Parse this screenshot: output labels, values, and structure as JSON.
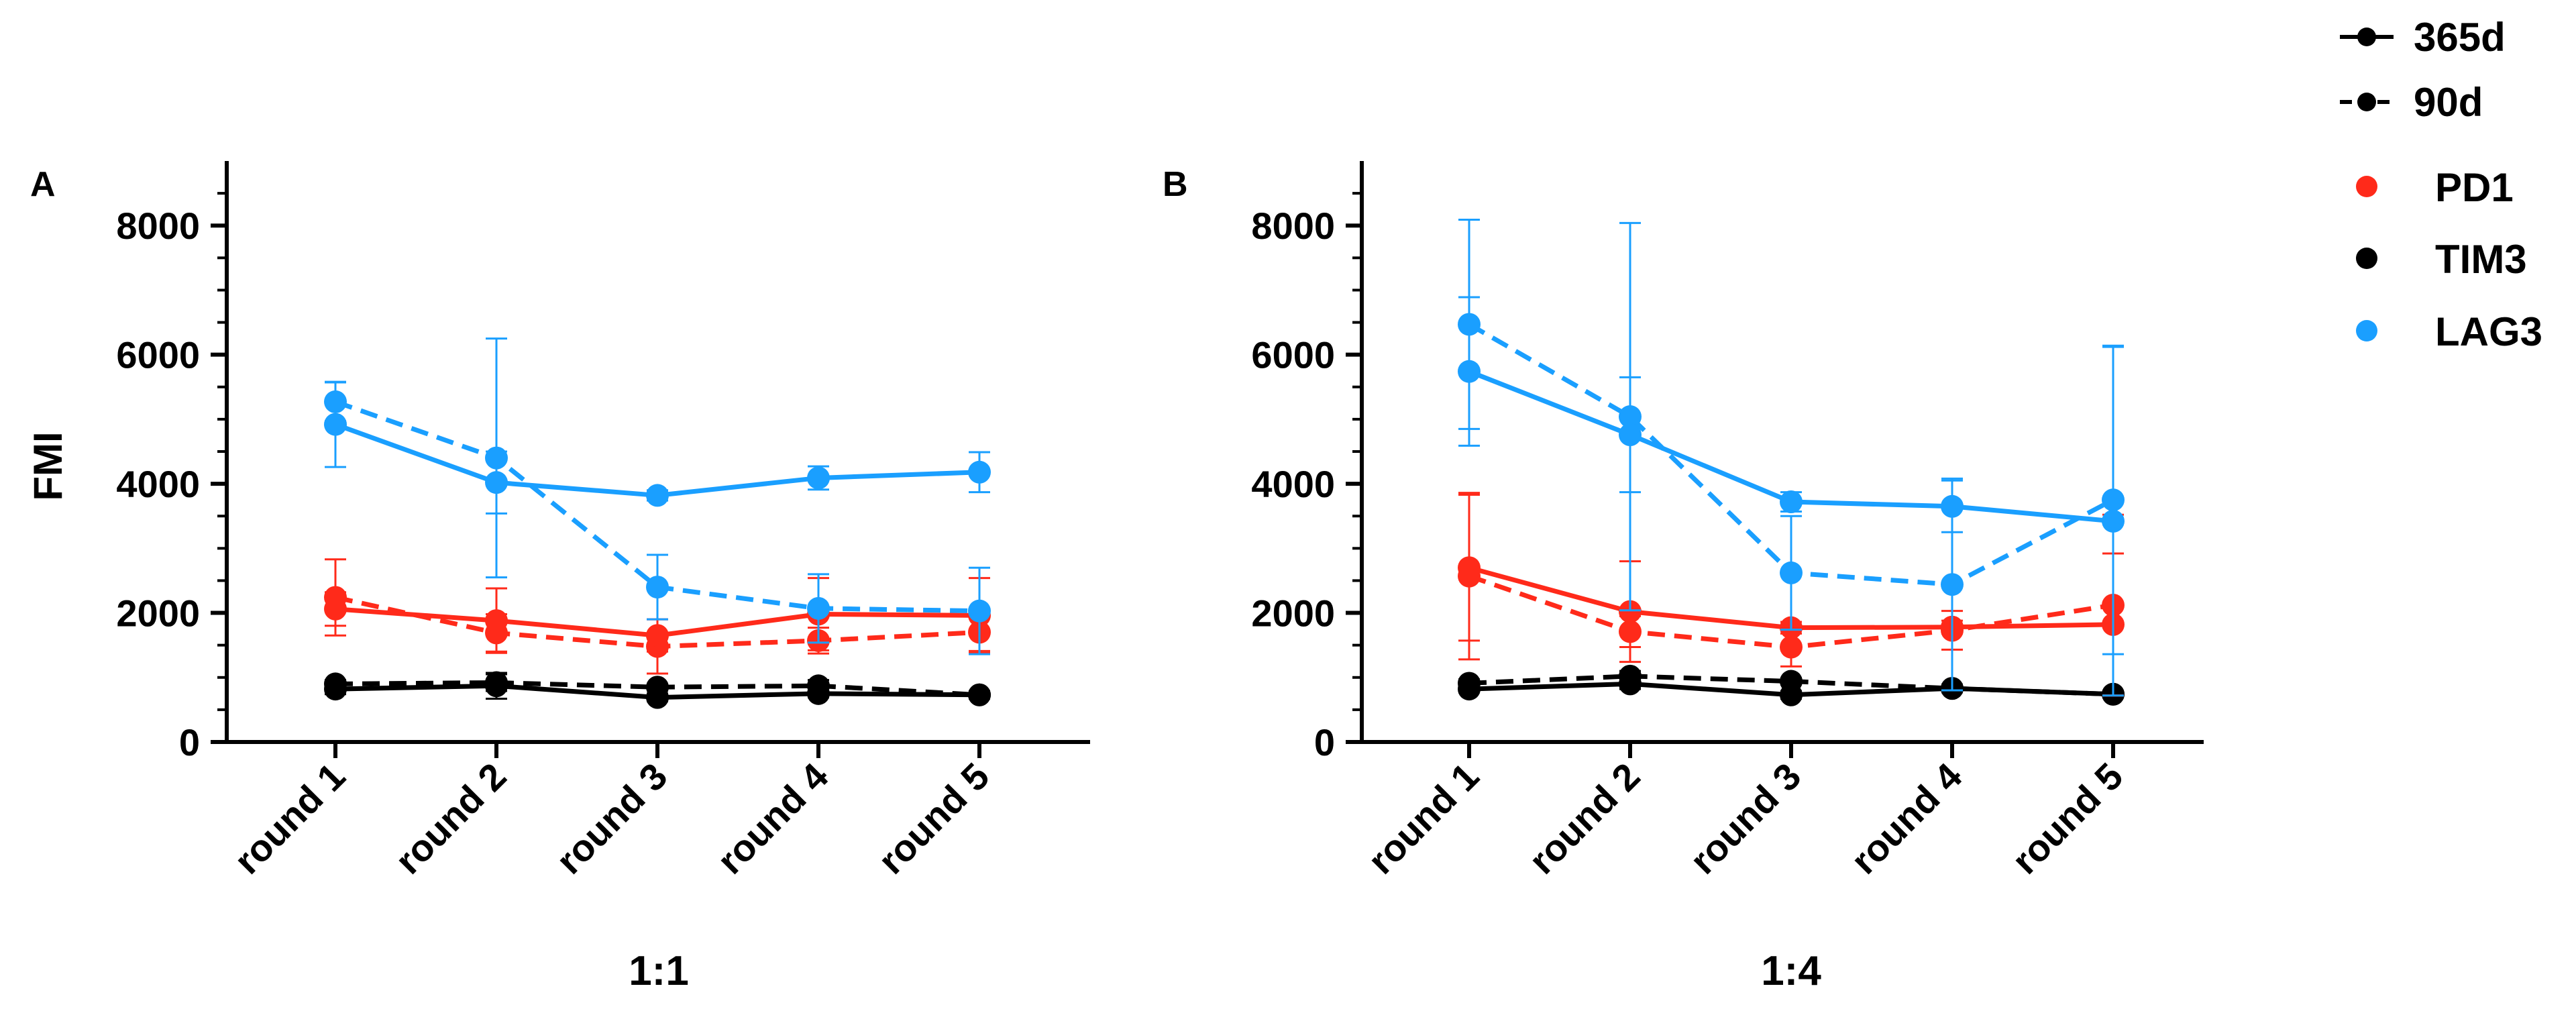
{
  "colors": {
    "PD1": "#ff2a1a",
    "TIM3": "#000000",
    "LAG3": "#1a9fff",
    "axis": "#000000"
  },
  "legend": {
    "line_styles": [
      {
        "label": "365d",
        "style": "solid"
      },
      {
        "label": "90d",
        "style": "dashed"
      }
    ],
    "markers": [
      {
        "label": "PD1",
        "series": "PD1"
      },
      {
        "label": "TIM3",
        "series": "TIM3"
      },
      {
        "label": "LAG3",
        "series": "LAG3"
      }
    ]
  },
  "chart_data": [
    {
      "type": "line",
      "panel_label": "A",
      "title": "",
      "xlabel": "1:1",
      "ylabel": "FMI",
      "categories": [
        "round 1",
        "round 2",
        "round 3",
        "round 4",
        "round 5"
      ],
      "ylim": [
        0,
        9000
      ],
      "yticks_major": [
        0,
        2000,
        4000,
        6000,
        8000
      ],
      "yticks_minor_step": 500,
      "series": [
        {
          "name": "LAG3 365d",
          "marker": "LAG3",
          "duration": "365d",
          "style": "solid",
          "values": [
            4920,
            4020,
            3820,
            4090,
            4180
          ],
          "err": [
            660,
            480,
            80,
            180,
            310
          ]
        },
        {
          "name": "LAG3 90d",
          "marker": "LAG3",
          "duration": "90d",
          "style": "dashed",
          "values": [
            5270,
            4400,
            2400,
            2070,
            2030
          ],
          "err": [
            300,
            1850,
            500,
            530,
            670
          ]
        },
        {
          "name": "PD1 365d",
          "marker": "PD1",
          "duration": "365d",
          "style": "solid",
          "values": [
            2060,
            1880,
            1650,
            1980,
            1960
          ],
          "err": [
            260,
            500,
            250,
            560,
            580
          ]
        },
        {
          "name": "PD1 90d",
          "marker": "PD1",
          "duration": "90d",
          "style": "dashed",
          "values": [
            2240,
            1690,
            1480,
            1570,
            1700
          ],
          "err": [
            590,
            290,
            420,
            200,
            290
          ]
        },
        {
          "name": "TIM3 365d",
          "marker": "TIM3",
          "duration": "365d",
          "style": "solid",
          "values": [
            820,
            870,
            690,
            750,
            730
          ],
          "err": [
            80,
            200,
            60,
            60,
            60
          ]
        },
        {
          "name": "TIM3 90d",
          "marker": "TIM3",
          "duration": "90d",
          "style": "dashed",
          "values": [
            900,
            920,
            850,
            870,
            730
          ],
          "err": [
            60,
            130,
            50,
            90,
            50
          ]
        }
      ]
    },
    {
      "type": "line",
      "panel_label": "B",
      "title": "",
      "xlabel": "1:4",
      "ylabel": "",
      "categories": [
        "round 1",
        "round 2",
        "round 3",
        "round 4",
        "round 5"
      ],
      "ylim": [
        0,
        9000
      ],
      "yticks_major": [
        0,
        2000,
        4000,
        6000,
        8000
      ],
      "yticks_minor_step": 500,
      "series": [
        {
          "name": "LAG3 365d",
          "marker": "LAG3",
          "duration": "365d",
          "style": "solid",
          "values": [
            5740,
            4760,
            3720,
            3650,
            3420
          ],
          "err": [
            1150,
            890,
            150,
            400,
            2700
          ]
        },
        {
          "name": "LAG3 90d",
          "marker": "LAG3",
          "duration": "90d",
          "style": "dashed",
          "values": [
            6470,
            5040,
            2620,
            2440,
            3750
          ],
          "err": [
            1620,
            3000,
            880,
            1640,
            2390
          ]
        },
        {
          "name": "PD1 365d",
          "marker": "PD1",
          "duration": "365d",
          "style": "solid",
          "values": [
            2700,
            2020,
            1770,
            1780,
            1820
          ],
          "err": [
            1130,
            780,
            90,
            100,
            1100
          ]
        },
        {
          "name": "PD1 90d",
          "marker": "PD1",
          "duration": "90d",
          "style": "dashed",
          "values": [
            2570,
            1710,
            1470,
            1730,
            2120
          ],
          "err": [
            1290,
            240,
            300,
            300,
            1400
          ]
        },
        {
          "name": "TIM3 365d",
          "marker": "TIM3",
          "duration": "365d",
          "style": "solid",
          "values": [
            820,
            900,
            730,
            830,
            740
          ],
          "err": [
            50,
            80,
            60,
            60,
            50
          ]
        },
        {
          "name": "TIM3 90d",
          "marker": "TIM3",
          "duration": "90d",
          "style": "dashed",
          "values": [
            910,
            1020,
            940,
            830,
            740
          ],
          "err": [
            60,
            80,
            50,
            60,
            50
          ]
        }
      ]
    }
  ]
}
